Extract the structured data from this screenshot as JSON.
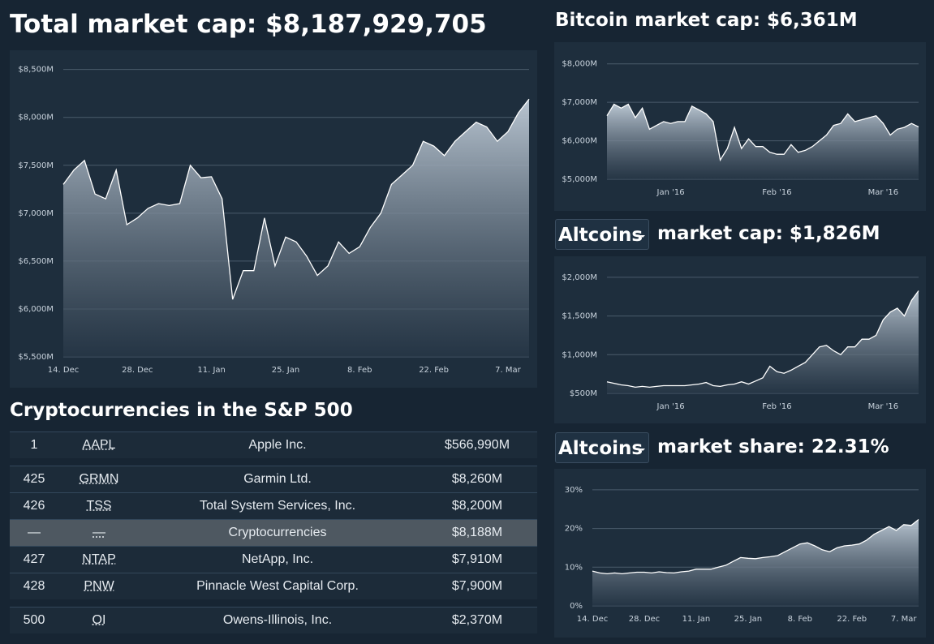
{
  "chart_data": [
    {
      "type": "area",
      "title": "Total market cap: $8,187,929,705",
      "color": "#ffffff",
      "categories": [
        "14. Dec",
        null,
        null,
        null,
        null,
        null,
        null,
        "28. Dec",
        null,
        null,
        null,
        null,
        null,
        null,
        "11. Jan",
        null,
        null,
        null,
        null,
        null,
        null,
        "25. Jan",
        null,
        null,
        null,
        null,
        null,
        null,
        "8. Feb",
        null,
        null,
        null,
        null,
        null,
        null,
        "22. Feb",
        null,
        null,
        null,
        null,
        null,
        null,
        "7. Mar",
        null,
        null
      ],
      "values": [
        7300,
        7450,
        7550,
        7200,
        7150,
        7450,
        6880,
        6950,
        7050,
        7100,
        7080,
        7100,
        7500,
        7370,
        7380,
        7150,
        6100,
        6400,
        6400,
        6950,
        6450,
        6750,
        6700,
        6550,
        6350,
        6450,
        6700,
        6580,
        6650,
        6850,
        7000,
        7300,
        7400,
        7500,
        7750,
        7700,
        7600,
        7750,
        7850,
        7950,
        7900,
        7750,
        7850,
        8050,
        8190
      ],
      "ylim": [
        5500,
        8700
      ],
      "yticks": [
        {
          "value": 5500,
          "label": "$5,500M"
        },
        {
          "value": 6000,
          "label": "$6,000M"
        },
        {
          "value": 6500,
          "label": "$6,500M"
        },
        {
          "value": 7000,
          "label": "$7,000M"
        },
        {
          "value": 7500,
          "label": "$7,500M"
        },
        {
          "value": 8000,
          "label": "$8,000M"
        },
        {
          "value": 8500,
          "label": "$8,500M"
        }
      ],
      "grid": true
    },
    {
      "type": "area",
      "title": "Bitcoin market cap: $6,361M",
      "color": "#ffffff",
      "categories": [
        null,
        null,
        null,
        null,
        null,
        null,
        null,
        null,
        null,
        "Jan '16",
        null,
        null,
        null,
        null,
        null,
        null,
        null,
        null,
        null,
        null,
        null,
        null,
        null,
        null,
        "Feb '16",
        null,
        null,
        null,
        null,
        null,
        null,
        null,
        null,
        null,
        null,
        null,
        null,
        null,
        null,
        "Mar '16",
        null,
        null,
        null,
        null,
        null
      ],
      "values": [
        6650,
        6950,
        6850,
        6950,
        6600,
        6850,
        6300,
        6400,
        6500,
        6450,
        6500,
        6500,
        6900,
        6800,
        6700,
        6500,
        5500,
        5800,
        6350,
        5800,
        6050,
        5850,
        5850,
        5700,
        5650,
        5650,
        5900,
        5700,
        5750,
        5850,
        6000,
        6150,
        6400,
        6450,
        6700,
        6500,
        6550,
        6600,
        6650,
        6450,
        6150,
        6300,
        6350,
        6450,
        6361
      ],
      "ylim": [
        5000,
        8500
      ],
      "yticks": [
        {
          "value": 5000,
          "label": "$5,000M"
        },
        {
          "value": 6000,
          "label": "$6,000M"
        },
        {
          "value": 7000,
          "label": "$7,000M"
        },
        {
          "value": 8000,
          "label": "$8,000M"
        }
      ],
      "grid": true
    },
    {
      "type": "area",
      "selector": "Altcoins",
      "title": "market cap: $1,826M",
      "color": "#ffffff",
      "categories": [
        null,
        null,
        null,
        null,
        null,
        null,
        null,
        null,
        null,
        "Jan '16",
        null,
        null,
        null,
        null,
        null,
        null,
        null,
        null,
        null,
        null,
        null,
        null,
        null,
        null,
        "Feb '16",
        null,
        null,
        null,
        null,
        null,
        null,
        null,
        null,
        null,
        null,
        null,
        null,
        null,
        null,
        "Mar '16",
        null,
        null,
        null,
        null,
        null
      ],
      "values": [
        650,
        630,
        610,
        600,
        580,
        590,
        580,
        590,
        600,
        600,
        600,
        600,
        610,
        620,
        640,
        600,
        590,
        610,
        620,
        650,
        620,
        660,
        700,
        850,
        780,
        760,
        800,
        850,
        900,
        1000,
        1100,
        1120,
        1050,
        1000,
        1100,
        1100,
        1200,
        1200,
        1250,
        1450,
        1550,
        1600,
        1500,
        1700,
        1826
      ],
      "ylim": [
        500,
        2250
      ],
      "yticks": [
        {
          "value": 500,
          "label": "$500M"
        },
        {
          "value": 1000,
          "label": "$1,000M"
        },
        {
          "value": 1500,
          "label": "$1,500M"
        },
        {
          "value": 2000,
          "label": "$2,000M"
        }
      ],
      "grid": true
    },
    {
      "type": "area",
      "selector": "Altcoins",
      "title": "market share: 22.31%",
      "color": "#ffffff",
      "categories": [
        "14. Dec",
        null,
        null,
        null,
        null,
        null,
        null,
        "28. Dec",
        null,
        null,
        null,
        null,
        null,
        null,
        "11. Jan",
        null,
        null,
        null,
        null,
        null,
        null,
        "25. Jan",
        null,
        null,
        null,
        null,
        null,
        null,
        "8. Feb",
        null,
        null,
        null,
        null,
        null,
        null,
        "22. Feb",
        null,
        null,
        null,
        null,
        null,
        null,
        "7. Mar",
        null,
        null
      ],
      "values": [
        9,
        8.5,
        8.3,
        8.5,
        8.3,
        8.5,
        8.7,
        8.7,
        8.5,
        8.8,
        8.6,
        8.5,
        8.8,
        9,
        9.5,
        9.5,
        9.5,
        10,
        10.5,
        11.5,
        12.5,
        12.3,
        12.2,
        12.5,
        12.7,
        13,
        14,
        15,
        16,
        16.3,
        15.5,
        14.5,
        14,
        15,
        15.5,
        15.7,
        16,
        17,
        18.5,
        19.5,
        20.5,
        19.5,
        21,
        20.8,
        22.31
      ],
      "ylim": [
        0,
        35
      ],
      "yticks": [
        {
          "value": 0,
          "label": "0%"
        },
        {
          "value": 10,
          "label": "10%"
        },
        {
          "value": 20,
          "label": "20%"
        },
        {
          "value": 30,
          "label": "30%"
        }
      ],
      "grid": true
    }
  ],
  "table": {
    "title": "Cryptocurrencies in the S&P 500",
    "rows": [
      [
        "1",
        "AAPL",
        "Apple Inc.",
        "$566,990M"
      ],
      [
        "425",
        "GRMN",
        "Garmin Ltd.",
        "$8,260M"
      ],
      [
        "426",
        "TSS",
        "Total System Services, Inc.",
        "$8,200M"
      ],
      [
        "—",
        "—",
        "Cryptocurrencies",
        "$8,188M"
      ],
      [
        "427",
        "NTAP",
        "NetApp, Inc.",
        "$7,910M"
      ],
      [
        "428",
        "PNW",
        "Pinnacle West Capital Corp.",
        "$7,900M"
      ],
      [
        "500",
        "OI",
        "Owens-Illinois, Inc.",
        "$2,370M"
      ]
    ]
  }
}
